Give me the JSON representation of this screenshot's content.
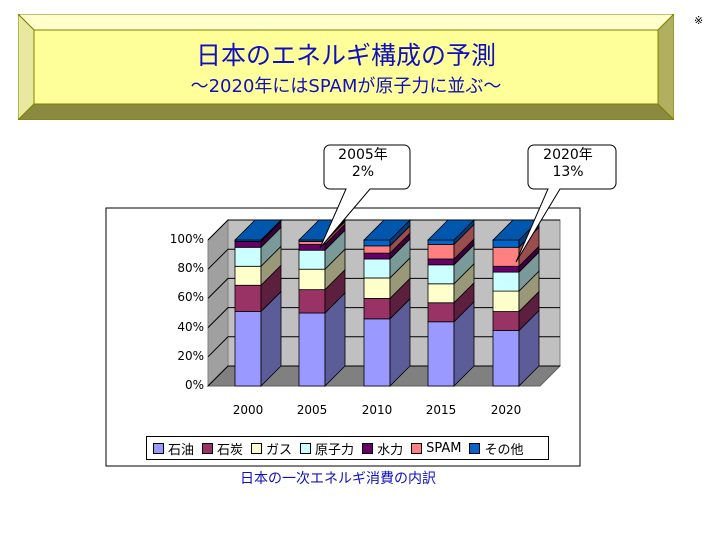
{
  "page": {
    "corner_mark": "※",
    "title": "日本のエネルギ構成の予測",
    "subtitle": "～2020年にはSPAMが原子力に並ぶ～",
    "caption": "日本の一次エネルギ消費の内訳"
  },
  "callouts": {
    "c2005_line1": "2005年",
    "c2005_line2": "2%",
    "c2020_line1": "2020年",
    "c2020_line2": "13%"
  },
  "chart_data": {
    "type": "bar",
    "stacked": true,
    "percent": true,
    "three_d": true,
    "categories": [
      "2000",
      "2005",
      "2010",
      "2015",
      "2020"
    ],
    "ylim": [
      0,
      100
    ],
    "yticks": [
      "0%",
      "20%",
      "40%",
      "60%",
      "80%",
      "100%"
    ],
    "legend_position": "bottom",
    "series": [
      {
        "name": "石油",
        "color": "#9999ff",
        "values": [
          51,
          50,
          46,
          44,
          38
        ]
      },
      {
        "name": "石炭",
        "color": "#993366",
        "values": [
          18,
          16,
          14,
          13,
          13
        ]
      },
      {
        "name": "ガス",
        "color": "#ffffcc",
        "values": [
          13,
          14,
          14,
          13,
          14
        ]
      },
      {
        "name": "原子力",
        "color": "#ccffff",
        "values": [
          13,
          13,
          13,
          13,
          13
        ]
      },
      {
        "name": "水力",
        "color": "#660066",
        "values": [
          4,
          4,
          4,
          4,
          4
        ]
      },
      {
        "name": "SPAM",
        "color": "#ff8080",
        "values": [
          0,
          2,
          5,
          10,
          13
        ]
      },
      {
        "name": "その他",
        "color": "#0066cc",
        "values": [
          1,
          1,
          4,
          3,
          5
        ]
      }
    ]
  }
}
